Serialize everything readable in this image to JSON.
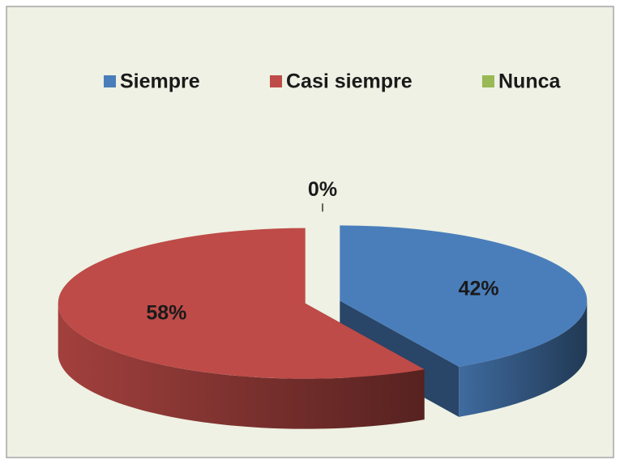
{
  "chart_data": {
    "type": "pie3d",
    "categories": [
      "Siempre",
      "Casi siempre",
      "Nunca"
    ],
    "values": [
      42,
      58,
      0
    ],
    "value_labels": [
      "42%",
      "58%",
      "0%"
    ],
    "colors": [
      "#4a7ebb",
      "#be4b48",
      "#98b954"
    ],
    "legend": "top"
  }
}
